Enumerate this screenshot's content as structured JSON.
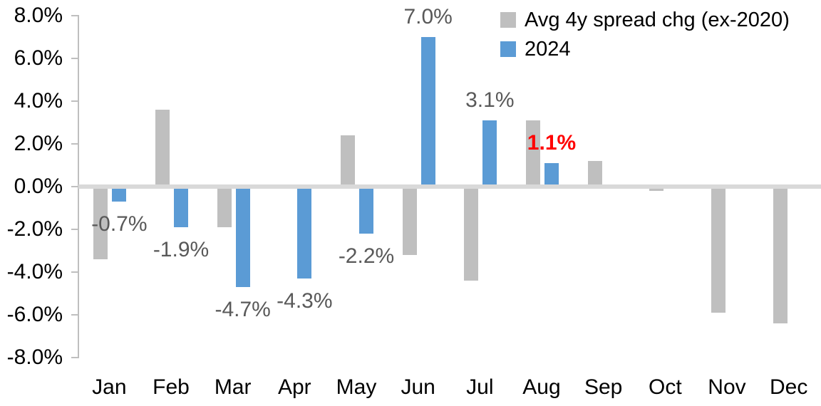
{
  "chart_data": {
    "type": "bar",
    "title": "",
    "xlabel": "",
    "ylabel": "",
    "categories": [
      "Jan",
      "Feb",
      "Mar",
      "Apr",
      "May",
      "Jun",
      "Jul",
      "Aug",
      "Sep",
      "Oct",
      "Nov",
      "Dec"
    ],
    "series": [
      {
        "name": "Avg 4y spread chg (ex-2020)",
        "color": "#BFBFBF",
        "values": [
          -3.4,
          3.6,
          -1.9,
          0,
          2.4,
          -3.2,
          -4.4,
          3.1,
          1.2,
          -0.2,
          -5.9,
          -6.4
        ]
      },
      {
        "name": "2024",
        "color": "#5B9BD5",
        "values": [
          -0.7,
          -1.9,
          -4.7,
          -4.3,
          -2.2,
          7.0,
          3.1,
          1.1,
          null,
          null,
          null,
          null
        ]
      }
    ],
    "data_labels": [
      {
        "index": 0,
        "text": "-0.7%",
        "color": "#595959",
        "bold": false
      },
      {
        "index": 1,
        "text": "-1.9%",
        "color": "#595959",
        "bold": false
      },
      {
        "index": 2,
        "text": "-4.7%",
        "color": "#595959",
        "bold": false
      },
      {
        "index": 3,
        "text": "-4.3%",
        "color": "#595959",
        "bold": false
      },
      {
        "index": 4,
        "text": "-2.2%",
        "color": "#595959",
        "bold": false
      },
      {
        "index": 5,
        "text": "7.0%",
        "color": "#595959",
        "bold": false
      },
      {
        "index": 6,
        "text": "3.1%",
        "color": "#595959",
        "bold": false
      },
      {
        "index": 7,
        "text": "1.1%",
        "color": "#FF0000",
        "bold": true
      }
    ],
    "y_axis": {
      "min": -8,
      "max": 8,
      "step": 2,
      "tick_labels": [
        "8.0%",
        "6.0%",
        "4.0%",
        "2.0%",
        "0.0%",
        "-2.0%",
        "-4.0%",
        "-6.0%",
        "-8.0%"
      ]
    },
    "legend_position": "top-right",
    "grid": false,
    "colors": {
      "axis_line": "#BFBFBF",
      "zero_line": "#D9D9D9",
      "tick_text": "#000000",
      "data_label": "#595959",
      "highlight": "#FF0000"
    }
  }
}
